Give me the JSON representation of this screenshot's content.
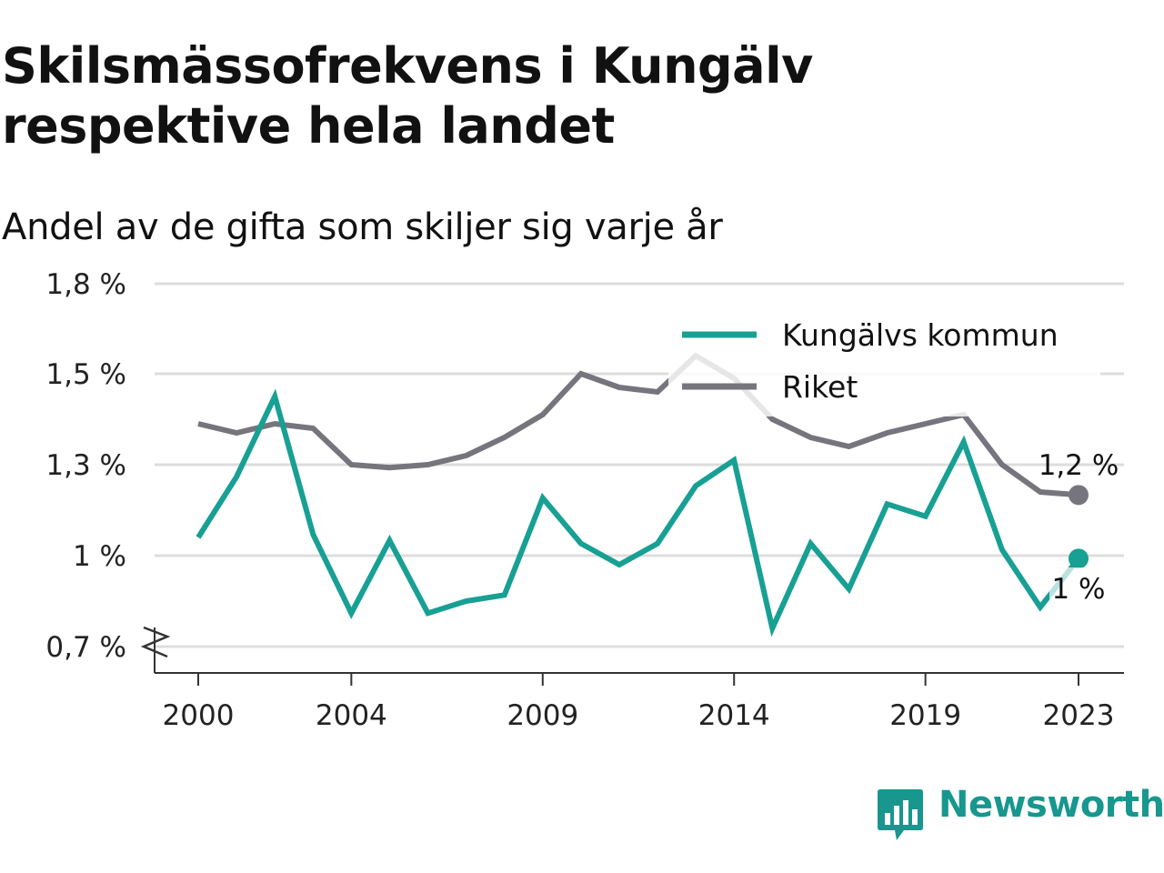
{
  "title_line1": "Skilsmässofrekvens i Kungälv",
  "title_line2": "respektive hela landet",
  "subtitle": "Andel av de gifta som skiljer sig varje år",
  "brand": "Newsworthy",
  "colors": {
    "kungalv": "#17a093",
    "riket": "#76757d",
    "grid": "#dddddd",
    "axis": "#333333"
  },
  "chart_data": {
    "type": "line",
    "title": "Skilsmässofrekvens i Kungälv respektive hela landet",
    "subtitle": "Andel av de gifta som skiljer sig varje år",
    "x": [
      2000,
      2001,
      2002,
      2003,
      2004,
      2005,
      2006,
      2007,
      2008,
      2009,
      2010,
      2011,
      2012,
      2013,
      2014,
      2015,
      2016,
      2017,
      2018,
      2019,
      2020,
      2021,
      2022,
      2023
    ],
    "x_ticks": [
      2000,
      2004,
      2009,
      2014,
      2019,
      2023
    ],
    "y_ticks": [
      {
        "value": 0.7,
        "label": "0,7 %"
      },
      {
        "value": 1.0,
        "label": "1 %"
      },
      {
        "value": 1.3,
        "label": "1,3 %"
      },
      {
        "value": 1.5,
        "label": "1,5 %"
      },
      {
        "value": 1.8,
        "label": "1,8 %"
      }
    ],
    "ylim": [
      0.7,
      1.8
    ],
    "y_axis_break": true,
    "grid": true,
    "legend_position": "top-right",
    "series": [
      {
        "name": "Kungälvs kommun",
        "color": "#17a093",
        "values": [
          1.06,
          1.26,
          1.45,
          1.07,
          0.81,
          1.05,
          0.81,
          0.85,
          0.87,
          1.19,
          1.04,
          0.97,
          1.04,
          1.23,
          1.31,
          0.76,
          1.04,
          0.89,
          1.17,
          1.13,
          1.35,
          1.02,
          0.83,
          0.99
        ],
        "end_label": "1 %"
      },
      {
        "name": "Riket",
        "color": "#76757d",
        "values": [
          1.39,
          1.37,
          1.39,
          1.38,
          1.3,
          1.29,
          1.3,
          1.32,
          1.36,
          1.41,
          1.5,
          1.47,
          1.46,
          1.56,
          1.49,
          1.4,
          1.36,
          1.34,
          1.37,
          1.39,
          1.41,
          1.3,
          1.21,
          1.2
        ],
        "end_label": "1,2 %"
      }
    ]
  }
}
